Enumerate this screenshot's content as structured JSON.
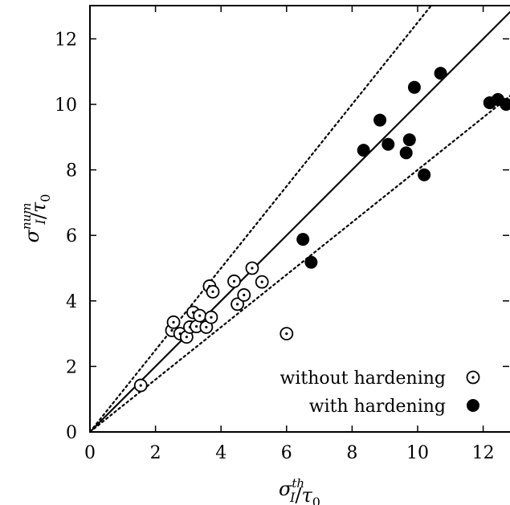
{
  "chart_data": {
    "type": "scatter",
    "xlabel": "σ_I^th/τ_0",
    "ylabel": "σ_I^num/τ_0",
    "x_axis_title": {
      "base": "σ",
      "sub": "I",
      "sup": "th",
      "rest": "/τ",
      "rest_sub": "0"
    },
    "y_axis_title": {
      "base": "σ",
      "sub": "I",
      "sup": "num",
      "rest": "/τ",
      "rest_sub": "0"
    },
    "xlim": [
      0,
      12.8
    ],
    "ylim": [
      0,
      12.8
    ],
    "xticks": [
      "0",
      "2",
      "4",
      "6",
      "8",
      "10",
      "12"
    ],
    "yticks": [
      "0",
      "2",
      "4",
      "6",
      "8",
      "10",
      "12"
    ],
    "grid": false,
    "legend_position": "bottom-right",
    "lines": [
      {
        "style": "solid",
        "slope": 1.0
      },
      {
        "style": "dotted",
        "slope": 1.25
      },
      {
        "style": "dotted",
        "slope": 0.8
      }
    ],
    "series": [
      {
        "name": "without hardening",
        "marker": "open-circle-dot",
        "points": [
          [
            1.55,
            1.42
          ],
          [
            2.5,
            3.1
          ],
          [
            2.55,
            3.35
          ],
          [
            2.75,
            3.0
          ],
          [
            2.95,
            2.9
          ],
          [
            3.05,
            3.2
          ],
          [
            3.15,
            3.65
          ],
          [
            3.25,
            3.22
          ],
          [
            3.35,
            3.55
          ],
          [
            3.55,
            3.2
          ],
          [
            3.7,
            3.5
          ],
          [
            3.65,
            4.45
          ],
          [
            3.75,
            4.28
          ],
          [
            4.4,
            4.6
          ],
          [
            4.5,
            3.9
          ],
          [
            4.7,
            4.18
          ],
          [
            4.95,
            5.0
          ],
          [
            5.25,
            4.58
          ],
          [
            6.0,
            3.0
          ]
        ]
      },
      {
        "name": "with hardening",
        "marker": "filled-circle",
        "points": [
          [
            6.5,
            5.88
          ],
          [
            6.75,
            5.18
          ],
          [
            8.35,
            8.6
          ],
          [
            8.85,
            9.52
          ],
          [
            9.1,
            8.78
          ],
          [
            9.65,
            8.52
          ],
          [
            9.75,
            8.92
          ],
          [
            9.9,
            10.52
          ],
          [
            10.2,
            7.85
          ],
          [
            10.7,
            10.95
          ],
          [
            12.2,
            10.05
          ],
          [
            12.45,
            10.15
          ],
          [
            12.7,
            10.0
          ]
        ]
      }
    ]
  }
}
